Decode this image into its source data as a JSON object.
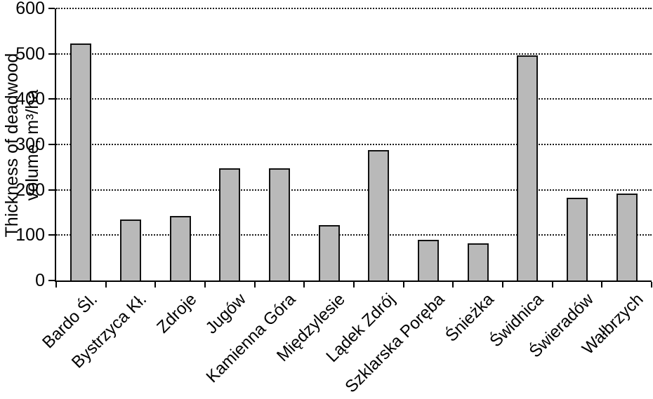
{
  "chart_data": {
    "type": "bar",
    "title": "",
    "ylabel_line1": "Thickness of deadwood",
    "ylabel_line2": "volume, m³/ha",
    "xlabel": "",
    "categories": [
      "Bardo Śl.",
      "Bystrzyca Kł.",
      "Zdroje",
      "Jugów",
      "Kamienna Góra",
      "Międzylesie",
      "Lądek Zdrój",
      "Szklarska Poręba",
      "Śnieżka",
      "Świdnica",
      "Świeradów",
      "Wałbrzych"
    ],
    "values": [
      522,
      135,
      142,
      248,
      248,
      122,
      287,
      90,
      82,
      496,
      182,
      192
    ],
    "ylim": [
      0,
      600
    ],
    "yticks": [
      0,
      100,
      200,
      300,
      400,
      500,
      600
    ],
    "grid": "dotted-horizontal",
    "legend": "none",
    "bar_fill": "#b9b9b9",
    "bar_border": "#111111"
  }
}
